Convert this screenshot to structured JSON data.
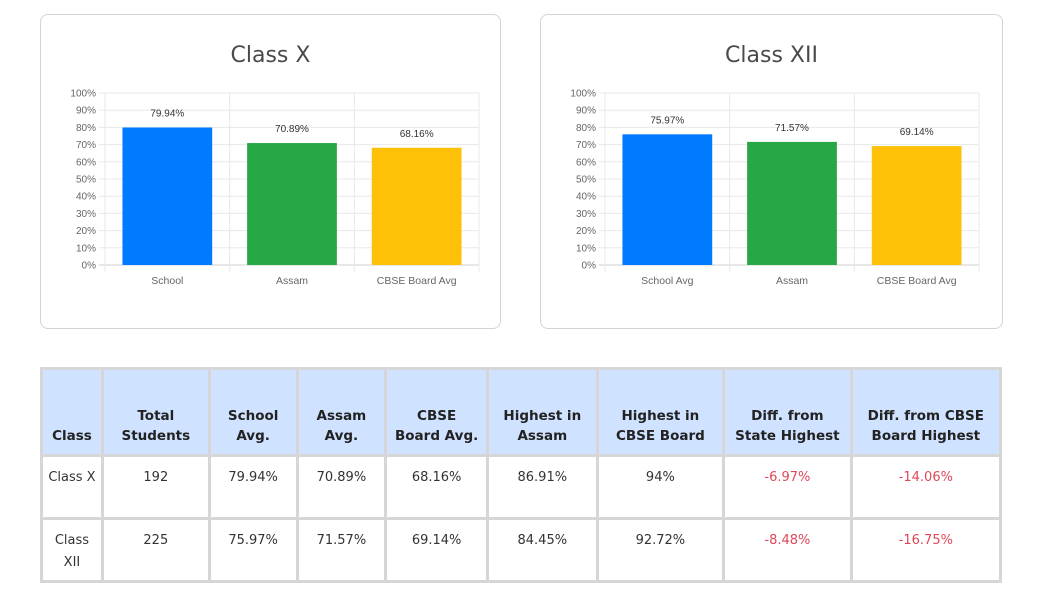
{
  "chart_data": [
    {
      "type": "bar",
      "title": "Class X",
      "categories": [
        "School",
        "Assam",
        "CBSE Board Avg"
      ],
      "values": [
        79.94,
        70.89,
        68.16
      ],
      "data_labels": [
        "79.94%",
        "70.89%",
        "68.16%"
      ],
      "colors": [
        "#007bff",
        "#28a745",
        "#ffc107"
      ],
      "xlabel": "",
      "ylabel": "",
      "ylim": [
        0,
        100
      ],
      "yticks": [
        "0%",
        "10%",
        "20%",
        "30%",
        "40%",
        "50%",
        "60%",
        "70%",
        "80%",
        "90%",
        "100%"
      ],
      "grid": true,
      "legend": "none"
    },
    {
      "type": "bar",
      "title": "Class XII",
      "categories": [
        "School Avg",
        "Assam",
        "CBSE Board Avg"
      ],
      "values": [
        75.97,
        71.57,
        69.14
      ],
      "data_labels": [
        "75.97%",
        "71.57%",
        "69.14%"
      ],
      "colors": [
        "#007bff",
        "#28a745",
        "#ffc107"
      ],
      "xlabel": "",
      "ylabel": "",
      "ylim": [
        0,
        100
      ],
      "yticks": [
        "0%",
        "10%",
        "20%",
        "30%",
        "40%",
        "50%",
        "60%",
        "70%",
        "80%",
        "90%",
        "100%"
      ],
      "grid": true,
      "legend": "none"
    }
  ],
  "table": {
    "headers": [
      "Class",
      "Total Students",
      "School Avg.",
      "Assam Avg.",
      "CBSE Board Avg.",
      "Highest in Assam",
      "Highest in CBSE Board",
      "Diff. from State Highest",
      "Diff. from CBSE Board Highest"
    ],
    "rows": [
      [
        "Class X",
        "192",
        "79.94%",
        "70.89%",
        "68.16%",
        "86.91%",
        "94%",
        "-6.97%",
        "-14.06%"
      ],
      [
        "Class XII",
        "225",
        "75.97%",
        "71.57%",
        "69.14%",
        "84.45%",
        "92.72%",
        "-8.48%",
        "-16.75%"
      ]
    ],
    "negative_color": "#e0485a",
    "header_bg": "#cfe2ff"
  }
}
